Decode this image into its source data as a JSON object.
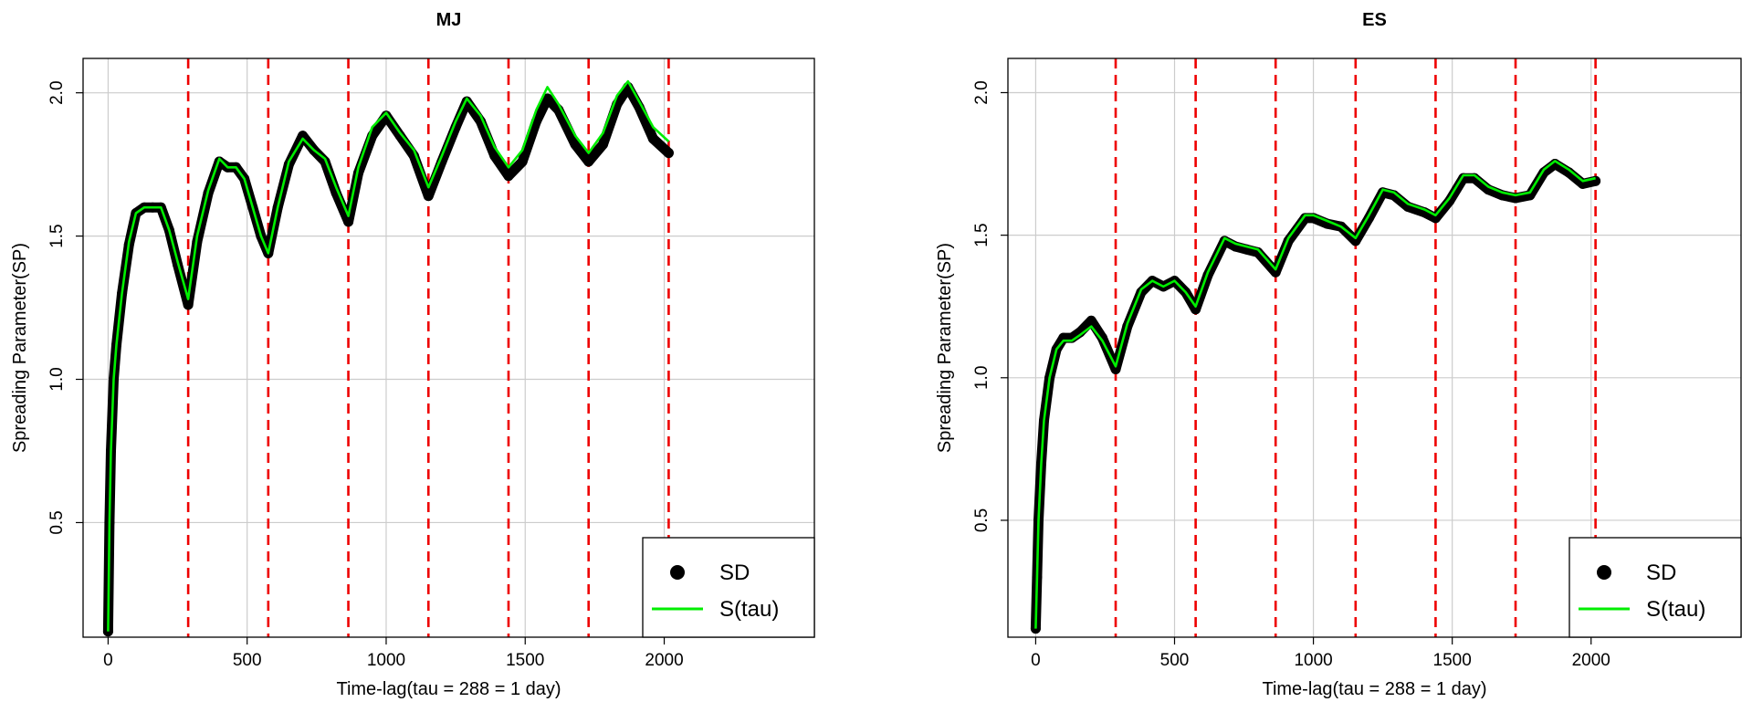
{
  "chart_data": [
    {
      "type": "line",
      "title": "MJ",
      "xlabel": "Time-lag(tau = 288 = 1 day)",
      "ylabel": "Spreading Parameter(SP)",
      "xlim": [
        -90,
        2540
      ],
      "ylim": [
        0.1,
        2.12
      ],
      "xticks": [
        0,
        500,
        1000,
        1500,
        2000
      ],
      "xtick_labels": [
        "0",
        "500",
        "1000",
        "1500",
        "2000"
      ],
      "yticks": [
        0.5,
        1.0,
        1.5,
        2.0
      ],
      "ytick_labels": [
        "0.5",
        "1.0",
        "1.5",
        "2.0"
      ],
      "grid": true,
      "vlines": [
        288,
        576,
        864,
        1152,
        1440,
        1728,
        2016
      ],
      "legend": {
        "position": "bottom-right",
        "entries": [
          "SD",
          "S(tau)"
        ]
      },
      "series": [
        {
          "name": "SD",
          "style": "points",
          "color": "#000000",
          "x": [
            0,
            5,
            10,
            20,
            30,
            50,
            75,
            100,
            130,
            160,
            190,
            220,
            250,
            288,
            320,
            360,
            400,
            430,
            460,
            490,
            520,
            550,
            576,
            610,
            650,
            700,
            740,
            780,
            820,
            864,
            900,
            950,
            1000,
            1050,
            1100,
            1152,
            1200,
            1250,
            1290,
            1340,
            1390,
            1440,
            1490,
            1540,
            1580,
            1620,
            1680,
            1728,
            1780,
            1830,
            1870,
            1910,
            1960,
            2016
          ],
          "y": [
            0.12,
            0.5,
            0.75,
            1.0,
            1.12,
            1.3,
            1.47,
            1.58,
            1.6,
            1.6,
            1.6,
            1.52,
            1.4,
            1.26,
            1.48,
            1.65,
            1.76,
            1.74,
            1.74,
            1.7,
            1.6,
            1.5,
            1.44,
            1.6,
            1.75,
            1.85,
            1.8,
            1.76,
            1.65,
            1.55,
            1.72,
            1.85,
            1.92,
            1.85,
            1.78,
            1.64,
            1.76,
            1.88,
            1.97,
            1.9,
            1.78,
            1.71,
            1.76,
            1.9,
            1.98,
            1.94,
            1.82,
            1.76,
            1.82,
            1.96,
            2.02,
            1.95,
            1.84,
            1.79
          ]
        },
        {
          "name": "S(tau)",
          "style": "line",
          "color": "#00ee00",
          "x": [
            0,
            5,
            10,
            20,
            30,
            50,
            75,
            100,
            130,
            160,
            190,
            220,
            250,
            288,
            320,
            360,
            400,
            430,
            460,
            490,
            520,
            550,
            576,
            610,
            650,
            700,
            740,
            780,
            820,
            864,
            900,
            950,
            1000,
            1050,
            1100,
            1152,
            1200,
            1250,
            1290,
            1340,
            1390,
            1440,
            1490,
            1540,
            1580,
            1620,
            1680,
            1728,
            1780,
            1830,
            1870,
            1910,
            1960,
            2016
          ],
          "y": [
            0.12,
            0.5,
            0.75,
            1.0,
            1.12,
            1.3,
            1.48,
            1.58,
            1.6,
            1.6,
            1.6,
            1.52,
            1.41,
            1.28,
            1.5,
            1.66,
            1.77,
            1.74,
            1.74,
            1.7,
            1.6,
            1.5,
            1.44,
            1.6,
            1.76,
            1.84,
            1.8,
            1.77,
            1.67,
            1.57,
            1.74,
            1.88,
            1.93,
            1.86,
            1.8,
            1.67,
            1.78,
            1.9,
            1.98,
            1.92,
            1.81,
            1.74,
            1.8,
            1.94,
            2.02,
            1.96,
            1.85,
            1.79,
            1.86,
            1.99,
            2.04,
            1.97,
            1.88,
            1.83
          ]
        }
      ]
    },
    {
      "type": "line",
      "title": "ES",
      "xlabel": "Time-lag(tau = 288 = 1 day)",
      "ylabel": "Spreading Parameter(SP)",
      "xlim": [
        -100,
        2540
      ],
      "ylim": [
        0.09,
        2.12
      ],
      "xticks": [
        0,
        500,
        1000,
        1500,
        2000
      ],
      "xtick_labels": [
        "0",
        "500",
        "1000",
        "1500",
        "2000"
      ],
      "yticks": [
        0.5,
        1.0,
        1.5,
        2.0
      ],
      "ytick_labels": [
        "0.5",
        "1.0",
        "1.5",
        "2.0"
      ],
      "grid": true,
      "vlines": [
        288,
        576,
        864,
        1152,
        1440,
        1728,
        2016
      ],
      "legend": {
        "position": "bottom-right",
        "entries": [
          "SD",
          "S(tau)"
        ]
      },
      "series": [
        {
          "name": "SD",
          "style": "points",
          "color": "#000000",
          "x": [
            0,
            5,
            10,
            20,
            30,
            50,
            75,
            100,
            130,
            160,
            200,
            240,
            288,
            330,
            380,
            420,
            460,
            500,
            540,
            576,
            620,
            680,
            720,
            760,
            800,
            864,
            910,
            970,
            1000,
            1050,
            1100,
            1152,
            1200,
            1250,
            1290,
            1340,
            1400,
            1440,
            1490,
            1540,
            1580,
            1630,
            1680,
            1728,
            1780,
            1830,
            1870,
            1920,
            1970,
            2016
          ],
          "y": [
            0.12,
            0.3,
            0.5,
            0.7,
            0.85,
            1.0,
            1.1,
            1.14,
            1.14,
            1.16,
            1.2,
            1.14,
            1.03,
            1.18,
            1.3,
            1.34,
            1.32,
            1.34,
            1.3,
            1.24,
            1.36,
            1.48,
            1.46,
            1.45,
            1.44,
            1.37,
            1.48,
            1.56,
            1.56,
            1.54,
            1.53,
            1.48,
            1.56,
            1.65,
            1.64,
            1.6,
            1.58,
            1.56,
            1.62,
            1.7,
            1.7,
            1.66,
            1.64,
            1.63,
            1.64,
            1.72,
            1.75,
            1.72,
            1.68,
            1.69
          ]
        },
        {
          "name": "S(tau)",
          "style": "line",
          "color": "#00ee00",
          "x": [
            0,
            5,
            10,
            20,
            30,
            50,
            75,
            100,
            130,
            160,
            200,
            240,
            288,
            330,
            380,
            420,
            460,
            500,
            540,
            576,
            620,
            680,
            720,
            760,
            800,
            864,
            910,
            970,
            1000,
            1050,
            1100,
            1152,
            1200,
            1250,
            1290,
            1340,
            1400,
            1440,
            1490,
            1540,
            1580,
            1630,
            1680,
            1728,
            1780,
            1830,
            1870,
            1920,
            1970,
            2016
          ],
          "y": [
            0.12,
            0.3,
            0.5,
            0.7,
            0.85,
            1.0,
            1.1,
            1.13,
            1.13,
            1.15,
            1.18,
            1.13,
            1.04,
            1.19,
            1.31,
            1.34,
            1.32,
            1.34,
            1.3,
            1.25,
            1.37,
            1.49,
            1.47,
            1.46,
            1.45,
            1.38,
            1.49,
            1.57,
            1.57,
            1.55,
            1.53,
            1.49,
            1.57,
            1.66,
            1.65,
            1.61,
            1.59,
            1.57,
            1.63,
            1.71,
            1.71,
            1.67,
            1.65,
            1.64,
            1.65,
            1.73,
            1.76,
            1.73,
            1.69,
            1.7
          ]
        }
      ]
    }
  ]
}
